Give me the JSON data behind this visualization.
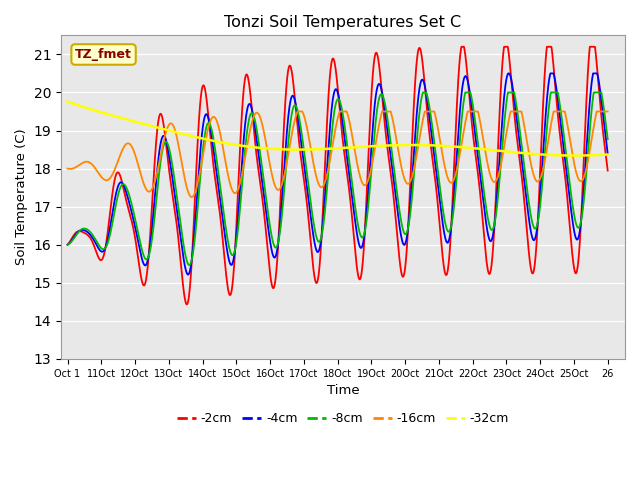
{
  "title": "Tonzi Soil Temperatures Set C",
  "xlabel": "Time",
  "ylabel": "Soil Temperature (C)",
  "ylim": [
    13.0,
    21.5
  ],
  "bg_color": "#e8e8e8",
  "grid_color": "#ffffff",
  "series_colors": {
    "-2cm": "#ff0000",
    "-4cm": "#0000ff",
    "-8cm": "#00bb00",
    "-16cm": "#ff8800",
    "-32cm": "#ffff00"
  },
  "xtick_labels": [
    "Oct 1",
    "11Oct",
    "12Oct",
    "13Oct",
    "14Oct",
    "15Oct",
    "16Oct",
    "17Oct",
    "18Oct",
    "19Oct",
    "20Oct",
    "21Oct",
    "22Oct",
    "23Oct",
    "24Oct",
    "25Oct",
    "26"
  ],
  "ytick_values": [
    13.0,
    14.0,
    15.0,
    16.0,
    17.0,
    18.0,
    19.0,
    20.0,
    21.0
  ],
  "annotation_text": "TZ_fmet",
  "annotation_color": "#8B0000",
  "annotation_bg": "#ffffcc",
  "annotation_edge": "#ccaa00"
}
